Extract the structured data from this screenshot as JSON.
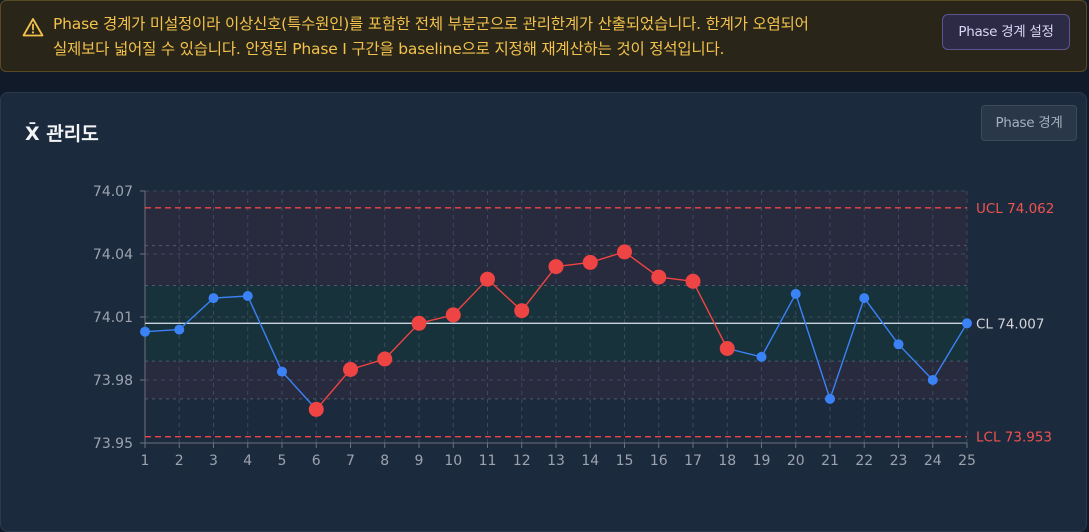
{
  "banner": {
    "message_line1": "Phase 경계가 미설정이라 이상신호(특수원인)를 포함한 전체 부분군으로 관리한계가 산출되었습니다. 한계가 오염되어",
    "message_line2": "실제보다 넓어질 수 있습니다. 안정된 Phase I 구간을 baseline으로 지정해 재계산하는 것이 정석입니다.",
    "button_label": "Phase 경계 설정",
    "icon": "warning-triangle-icon",
    "color": "#f2c24c"
  },
  "card": {
    "title": "X̄ 관리도",
    "button_label": "Phase 경계"
  },
  "chart_data": {
    "type": "line",
    "title": "X̄ 관리도",
    "x": [
      1,
      2,
      3,
      4,
      5,
      6,
      7,
      8,
      9,
      10,
      11,
      12,
      13,
      14,
      15,
      16,
      17,
      18,
      19,
      20,
      21,
      22,
      23,
      24,
      25
    ],
    "values": [
      74.003,
      74.004,
      74.019,
      74.02,
      73.984,
      73.966,
      73.985,
      73.99,
      74.007,
      74.011,
      74.028,
      74.013,
      74.034,
      74.036,
      74.041,
      74.029,
      74.027,
      73.995,
      73.991,
      74.021,
      73.971,
      74.019,
      73.997,
      73.98,
      74.007
    ],
    "out_of_control": [
      6,
      7,
      8,
      9,
      10,
      11,
      12,
      13,
      14,
      15,
      16,
      17,
      18
    ],
    "ylim": [
      73.95,
      74.07
    ],
    "yticks": [
      73.95,
      73.98,
      74.01,
      74.04,
      74.07
    ],
    "ytick_labels": [
      "73.95",
      "73.98",
      "74.01",
      "74.04",
      "74.07"
    ],
    "xtick_labels": [
      "1",
      "2",
      "3",
      "4",
      "5",
      "6",
      "7",
      "8",
      "9",
      "10",
      "11",
      "12",
      "13",
      "14",
      "15",
      "16",
      "17",
      "18",
      "19",
      "20",
      "21",
      "22",
      "23",
      "24",
      "25"
    ],
    "ucl": 74.062,
    "cl": 74.007,
    "lcl": 73.953,
    "ucl_label": "UCL 74.062",
    "cl_label": "CL 74.007",
    "lcl_label": "LCL 73.953",
    "zone_lines": [
      73.971,
      73.989,
      74.025,
      74.044
    ],
    "grid": true,
    "colors": {
      "normal": "#3b82f6",
      "alarm": "#ef4444",
      "limit": "#ef4444",
      "center": "#cbd5e1",
      "zone_inner": "#17323a",
      "zone_outer": "#272b3d"
    }
  }
}
